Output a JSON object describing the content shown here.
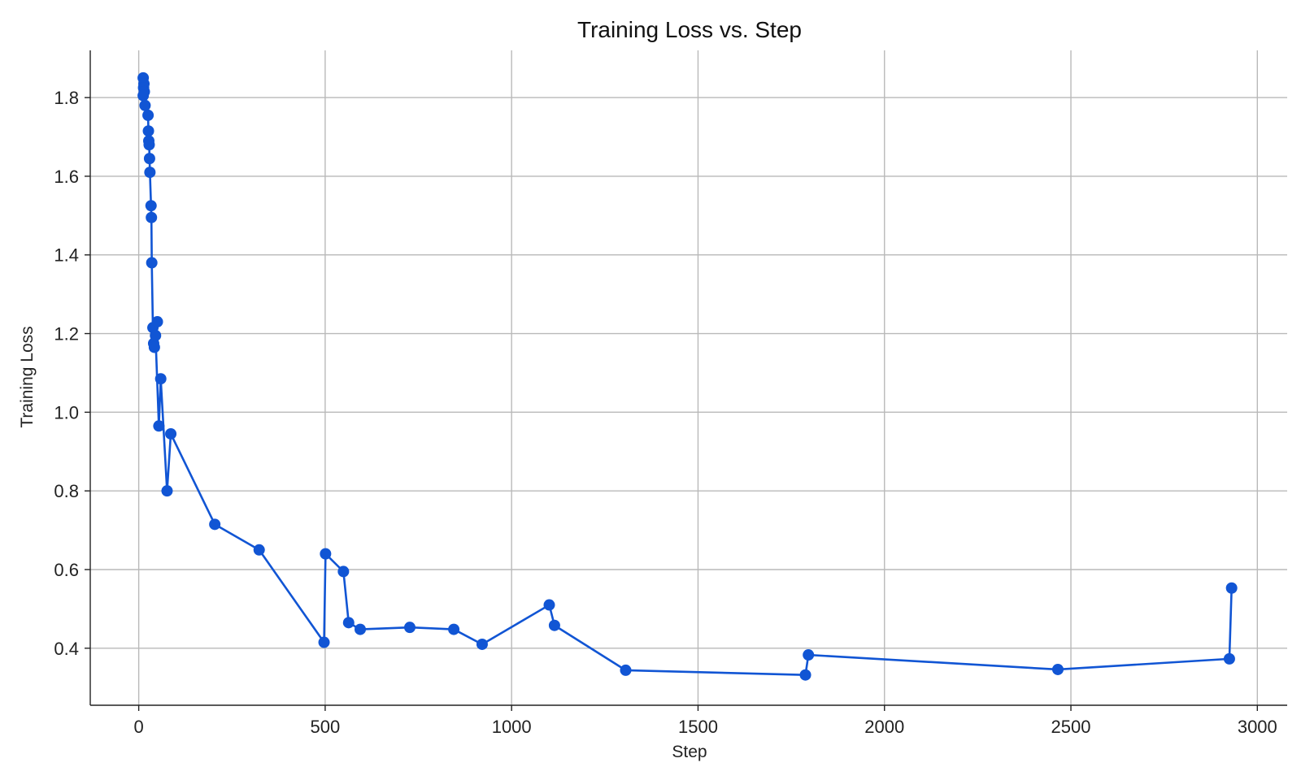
{
  "chart_data": {
    "type": "line",
    "title": "Training Loss vs. Step",
    "xlabel": "Step",
    "ylabel": "Training Loss",
    "xlim": [
      -130,
      3080
    ],
    "ylim": [
      0.255,
      1.92
    ],
    "xticks": [
      0,
      500,
      1000,
      1500,
      2000,
      2500,
      3000
    ],
    "yticks": [
      0.4,
      0.6,
      0.8,
      1.0,
      1.2,
      1.4,
      1.6,
      1.8
    ],
    "xtick_labels": [
      "0",
      "500",
      "1000",
      "1500",
      "2000",
      "2500",
      "3000"
    ],
    "ytick_labels": [
      "0.4",
      "0.6",
      "0.8",
      "1.0",
      "1.2",
      "1.4",
      "1.6",
      "1.8"
    ],
    "grid": true,
    "color": "#1155d4",
    "series": [
      {
        "x": [
          12,
          14,
          13,
          15,
          12,
          17,
          25,
          26,
          27,
          28,
          29,
          30,
          33,
          34,
          35,
          38,
          40,
          42,
          50,
          45,
          54,
          59,
          76,
          86,
          204,
          323,
          497,
          501,
          549,
          563,
          594,
          727,
          845,
          921,
          1101,
          1115,
          1306,
          1788,
          1796,
          2465,
          2925,
          2931
        ],
        "y": [
          1.85,
          1.835,
          1.825,
          1.815,
          1.805,
          1.78,
          1.755,
          1.715,
          1.69,
          1.68,
          1.645,
          1.61,
          1.525,
          1.495,
          1.38,
          1.215,
          1.175,
          1.165,
          1.23,
          1.195,
          0.965,
          1.085,
          0.8,
          0.945,
          0.715,
          0.65,
          0.415,
          0.64,
          0.595,
          0.465,
          0.448,
          0.453,
          0.448,
          0.41,
          0.51,
          0.458,
          0.344,
          0.332,
          0.383,
          0.346,
          0.373,
          0.553
        ]
      }
    ]
  }
}
